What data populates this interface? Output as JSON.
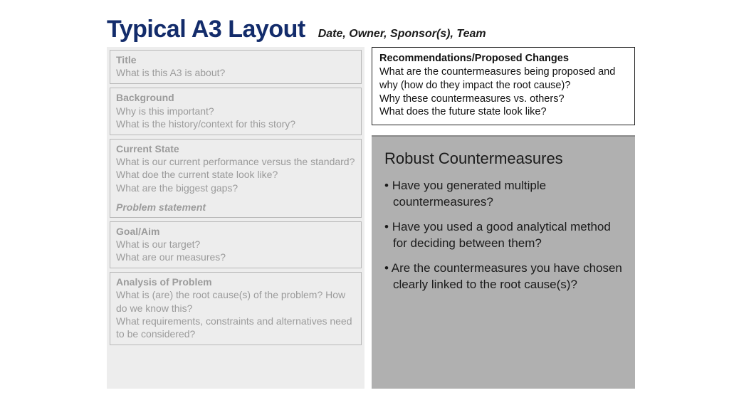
{
  "header": {
    "title": "Typical A3 Layout",
    "subtitle": "Date, Owner,  Sponsor(s), Team"
  },
  "left": {
    "sections": [
      {
        "heading": "Title",
        "body": "What is this A3 is about?",
        "extra": ""
      },
      {
        "heading": "Background",
        "body": "Why is this important?\nWhat is the history/context for this story?",
        "extra": ""
      },
      {
        "heading": "Current State",
        "body": "What is our current performance versus the standard?\nWhat doe the current state look like?\nWhat are the biggest gaps?",
        "extra": "Problem statement"
      },
      {
        "heading": "Goal/Aim",
        "body": "What is our target?\nWhat are our measures?",
        "extra": ""
      },
      {
        "heading": "Analysis of Problem",
        "body": "What is (are) the root cause(s) of the problem?  How do we know this?\nWhat requirements, constraints and alternatives need to be considered?",
        "extra": ""
      }
    ]
  },
  "right": {
    "top": {
      "heading": "Recommendations/Proposed Changes",
      "body": "What are the countermeasures being proposed and why (how do they impact the root cause)?\nWhy these countermeasures vs. others?\nWhat does the future state look like?"
    },
    "bottom": {
      "title": "Robust Countermeasures",
      "bullets": [
        "Have you generated multiple countermeasures?",
        "Have you used a good analytical method for deciding between them?",
        "Are the countermeasures you have chosen clearly linked to the root cause(s)?"
      ]
    }
  },
  "colors": {
    "title_color": "#132c6b",
    "faded_text": "#9b9b9b",
    "left_bg": "#ededed",
    "right_bottom_bg": "#b0b0b0",
    "dark_text": "#111111"
  }
}
